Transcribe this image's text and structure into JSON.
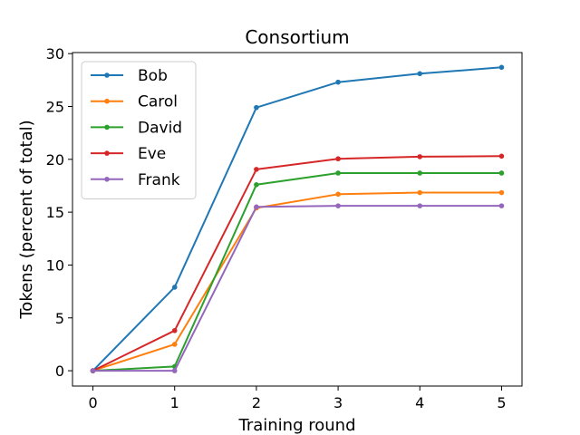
{
  "chart_data": {
    "type": "line",
    "title": "Consortium",
    "xlabel": "Training round",
    "ylabel": "Tokens (percent of total)",
    "x": [
      0,
      1,
      2,
      3,
      4,
      5
    ],
    "xlim": [
      -0.25,
      5.25
    ],
    "ylim": [
      -1.45,
      30.1
    ],
    "xticks": [
      0,
      1,
      2,
      3,
      4,
      5
    ],
    "yticks": [
      0,
      5,
      10,
      15,
      20,
      25,
      30
    ],
    "grid": false,
    "legend_position": "top-left",
    "series": [
      {
        "name": "Bob",
        "color": "#1f77b4",
        "values": [
          0,
          7.9,
          24.9,
          27.3,
          28.1,
          28.7
        ]
      },
      {
        "name": "Carol",
        "color": "#ff7f0e",
        "values": [
          0,
          2.5,
          15.4,
          16.7,
          16.85,
          16.85
        ]
      },
      {
        "name": "David",
        "color": "#2ca02c",
        "values": [
          0,
          0.4,
          17.6,
          18.7,
          18.7,
          18.7
        ]
      },
      {
        "name": "Eve",
        "color": "#d62728",
        "values": [
          0,
          3.8,
          19.05,
          20.05,
          20.25,
          20.3
        ]
      },
      {
        "name": "Frank",
        "color": "#9467bd",
        "values": [
          0,
          0.0,
          15.5,
          15.6,
          15.6,
          15.6
        ]
      }
    ]
  }
}
